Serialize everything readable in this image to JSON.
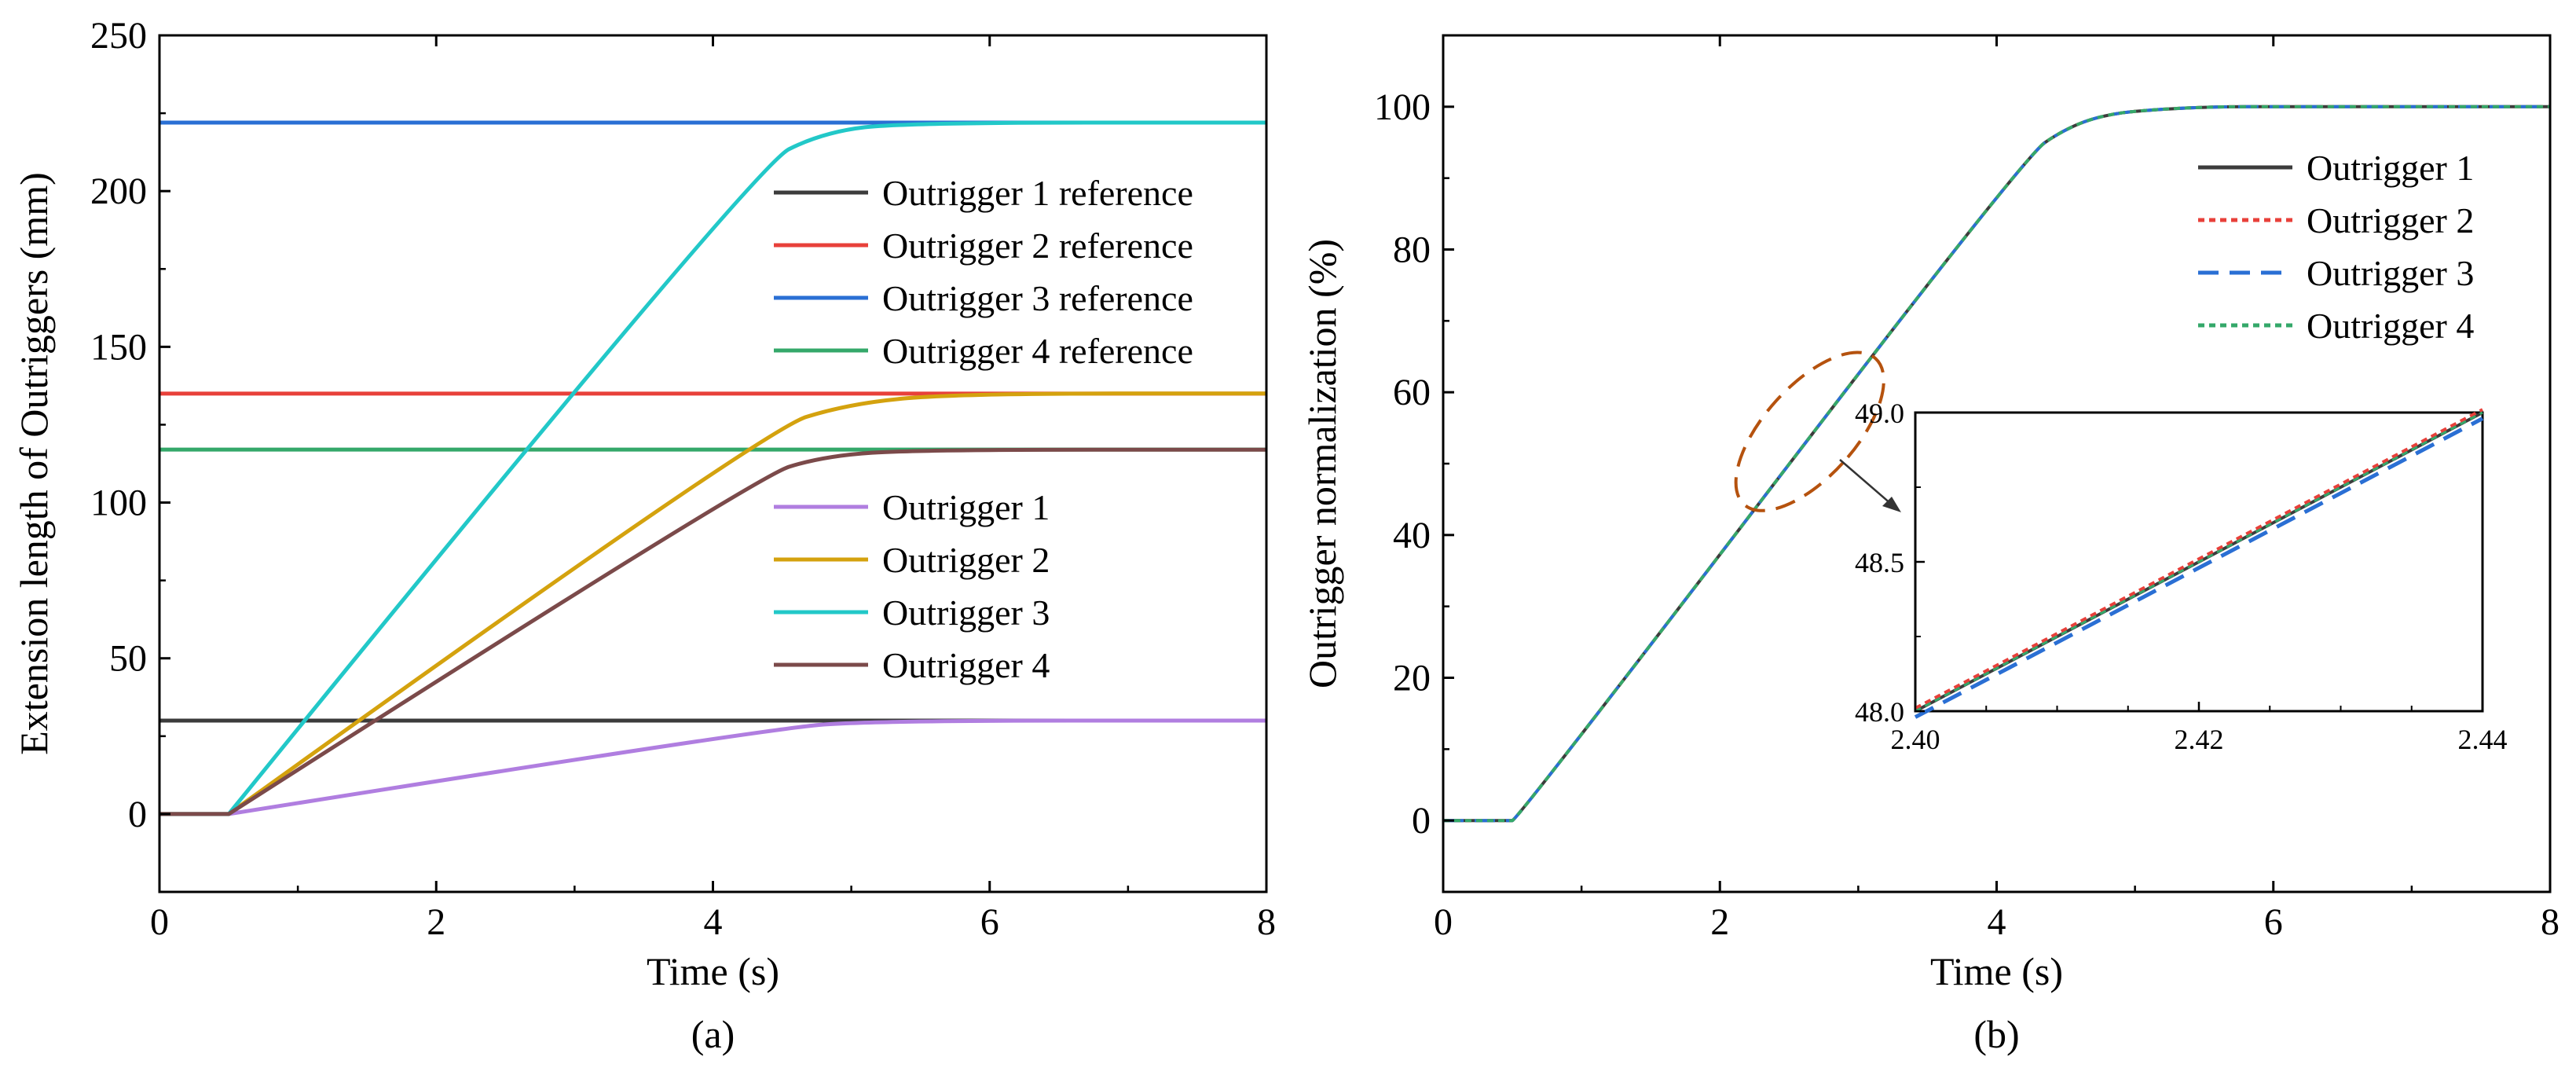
{
  "chart_data": [
    {
      "type": "line",
      "caption": "(a)",
      "xlabel": "Time (s)",
      "ylabel": "Extension length of Outriggers (mm)",
      "xlim": [
        0,
        8
      ],
      "ylim": [
        -25,
        250
      ],
      "xticks": [
        "0",
        "2",
        "4",
        "6",
        "8"
      ],
      "yticks": [
        "0",
        "50",
        "100",
        "150",
        "200",
        "250"
      ],
      "reference_lines": [
        {
          "name": "Outrigger 1 reference",
          "value": 30,
          "color": "#3c3c3c"
        },
        {
          "name": "Outrigger 2 reference",
          "value": 135,
          "color": "#e8403a"
        },
        {
          "name": "Outrigger 3 reference",
          "value": 222,
          "color": "#2a6fd4"
        },
        {
          "name": "Outrigger 4 reference",
          "value": 117,
          "color": "#34a86a"
        }
      ],
      "series": [
        {
          "name": "Outrigger 1",
          "color": "#b07ee0",
          "x": [
            0,
            0.5,
            4.4,
            5.2,
            8
          ],
          "y": [
            0,
            0,
            27.5,
            30,
            30
          ]
        },
        {
          "name": "Outrigger 2",
          "color": "#d4a20e",
          "x": [
            0,
            0.5,
            4.35,
            5.0,
            5.8,
            8
          ],
          "y": [
            0,
            0,
            123,
            132,
            135,
            135
          ]
        },
        {
          "name": "Outrigger 3",
          "color": "#22c8c8",
          "x": [
            0,
            0.5,
            4.3,
            4.8,
            5.4,
            8
          ],
          "y": [
            0,
            0,
            208,
            219,
            222,
            222
          ]
        },
        {
          "name": "Outrigger 4",
          "color": "#7b4a4a",
          "x": [
            0,
            0.5,
            4.3,
            4.8,
            5.5,
            8
          ],
          "y": [
            0,
            0,
            108,
            115,
            117,
            117
          ]
        }
      ],
      "legend_reference": [
        "Outrigger 1 reference",
        "Outrigger 2 reference",
        "Outrigger 3 reference",
        "Outrigger 4 reference"
      ],
      "legend_series": [
        "Outrigger 1",
        "Outrigger 2",
        "Outrigger 3",
        "Outrigger 4"
      ]
    },
    {
      "type": "line",
      "caption": "(b)",
      "xlabel": "Time (s)",
      "ylabel": "Outrigger  normalization (%)",
      "xlim": [
        0,
        8
      ],
      "ylim": [
        -10,
        110
      ],
      "xticks": [
        "0",
        "2",
        "4",
        "6",
        "8"
      ],
      "yticks": [
        "0",
        "20",
        "40",
        "60",
        "80",
        "100"
      ],
      "curve": {
        "x": [
          0,
          0.5,
          0.55,
          4.2,
          4.5,
          4.8,
          5.2,
          5.6,
          6.0,
          8
        ],
        "y": [
          0,
          0,
          0.5,
          93,
          97,
          99,
          99.7,
          100,
          100,
          100
        ]
      },
      "series": [
        {
          "name": "Outrigger 1",
          "color": "#3c3c3c",
          "style": "solid"
        },
        {
          "name": "Outrigger 2",
          "color": "#e8403a",
          "style": "dotted"
        },
        {
          "name": "Outrigger 3",
          "color": "#2a6fd4",
          "style": "dashed"
        },
        {
          "name": "Outrigger 4",
          "color": "#34a86a",
          "style": "dotted"
        }
      ],
      "inset": {
        "xlim": [
          2.4,
          2.44
        ],
        "ylim": [
          48.0,
          49.0
        ],
        "xticks": [
          "2.40",
          "2.42",
          "2.44"
        ],
        "yticks": [
          "48.0",
          "48.5",
          "49.0"
        ],
        "series": [
          {
            "name": "Outrigger 1",
            "x": [
              2.4,
              2.44
            ],
            "y": [
              48.0,
              49.0
            ]
          },
          {
            "name": "Outrigger 2",
            "x": [
              2.4,
              2.44
            ],
            "y": [
              48.01,
              49.01
            ]
          },
          {
            "name": "Outrigger 3",
            "x": [
              2.4,
              2.44
            ],
            "y": [
              47.98,
              48.98
            ]
          },
          {
            "name": "Outrigger 4",
            "x": [
              2.4,
              2.44
            ],
            "y": [
              48.0,
              49.0
            ]
          }
        ]
      },
      "zoom_marker": {
        "center_x": 2.65,
        "center_y": 54.5,
        "color": "#b5520e"
      }
    }
  ]
}
